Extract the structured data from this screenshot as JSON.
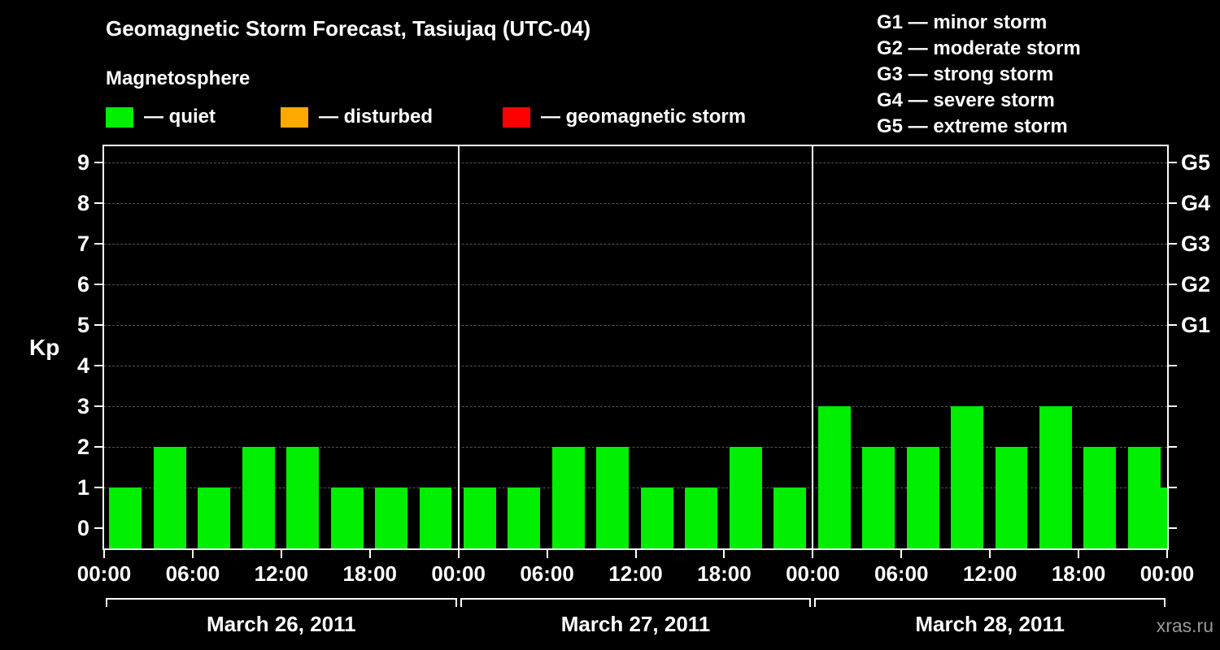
{
  "title": "Geomagnetic Storm Forecast, Tasiujaq (UTC-04)",
  "legend": {
    "heading": "Magnetosphere",
    "items": [
      {
        "name": "quiet",
        "label": "— quiet",
        "color": "#00ee00"
      },
      {
        "name": "disturbed",
        "label": "— disturbed",
        "color": "#ffa800"
      },
      {
        "name": "storm",
        "label": "— geomagnetic storm",
        "color": "#ff0000"
      }
    ]
  },
  "storm_scale_legend": [
    "G1 — minor storm",
    "G2 — moderate storm",
    "G3 — strong storm",
    "G4 — severe storm",
    "G5 — extreme storm"
  ],
  "watermark": "xras.ru",
  "chart_data": {
    "type": "bar",
    "title": "Geomagnetic Storm Forecast, Tasiujaq (UTC-04)",
    "ylabel": "Kp",
    "ylim": [
      0,
      9.5
    ],
    "yticks": [
      0,
      1,
      2,
      3,
      4,
      5,
      6,
      7,
      8,
      9
    ],
    "interval_hours": 3,
    "bar_color": "#00ee00",
    "grid": "dashed horizontal at each Kp level",
    "x_tick_labels": [
      "00:00",
      "06:00",
      "12:00",
      "18:00",
      "00:00",
      "06:00",
      "12:00",
      "18:00",
      "00:00",
      "06:00",
      "12:00",
      "18:00",
      "00:00"
    ],
    "right_scale": [
      {
        "label": "G1",
        "kp": 5
      },
      {
        "label": "G2",
        "kp": 6
      },
      {
        "label": "G3",
        "kp": 7
      },
      {
        "label": "G4",
        "kp": 8
      },
      {
        "label": "G5",
        "kp": 9
      }
    ],
    "days": [
      {
        "date": "March 26, 2011",
        "kp_values": [
          1,
          2,
          1,
          2,
          2,
          1,
          1,
          1
        ]
      },
      {
        "date": "March 27, 2011",
        "kp_values": [
          1,
          1,
          2,
          2,
          1,
          1,
          2,
          1
        ]
      },
      {
        "date": "March 28, 2011",
        "kp_values": [
          3,
          2,
          2,
          3,
          2,
          3,
          2,
          2
        ]
      }
    ],
    "partial_next_value": 1
  }
}
